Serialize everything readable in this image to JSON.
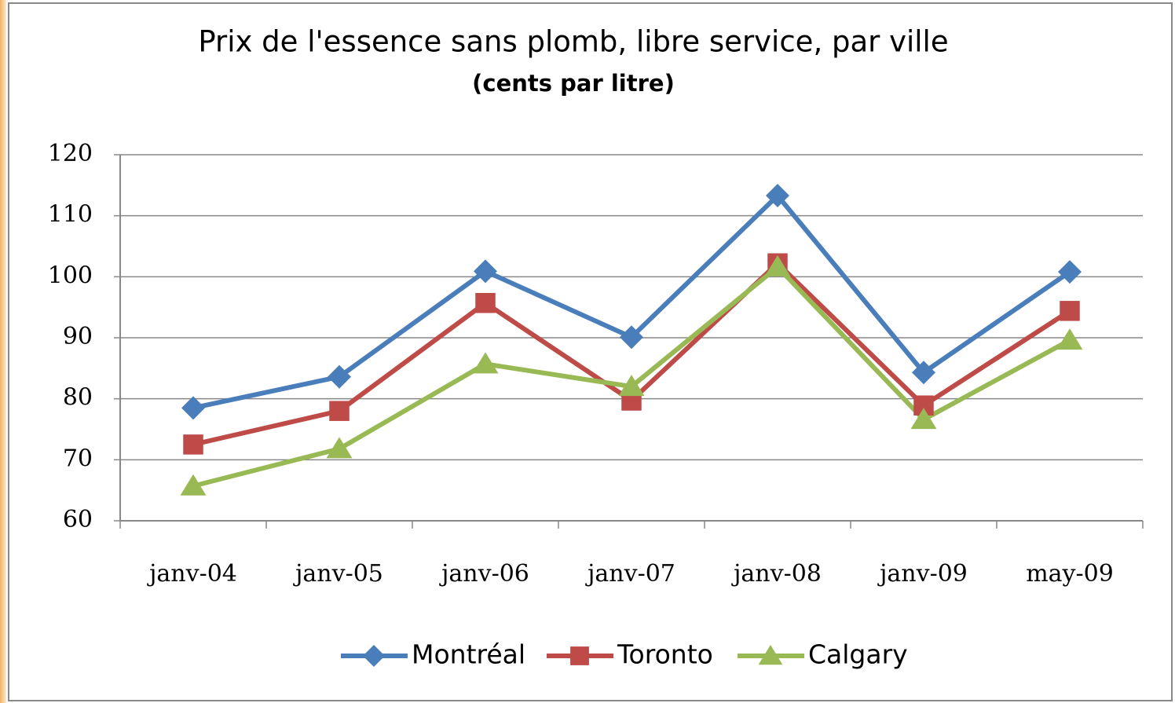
{
  "chart_data": {
    "type": "line",
    "title": "Prix de l'essence sans plomb, libre service, par ville",
    "subtitle": "(cents par litre)",
    "categories": [
      "janv-04",
      "janv-05",
      "janv-06",
      "janv-07",
      "janv-08",
      "janv-09",
      "may-09"
    ],
    "series": [
      {
        "name": "Montréal",
        "color": "#4a7ebb",
        "marker": "diamond",
        "values": [
          78.5,
          83.6,
          100.9,
          90.1,
          113.3,
          84.3,
          100.8
        ]
      },
      {
        "name": "Toronto",
        "color": "#be4b48",
        "marker": "square",
        "values": [
          72.5,
          78.0,
          95.7,
          79.7,
          102.2,
          78.9,
          94.4
        ]
      },
      {
        "name": "Calgary",
        "color": "#98b954",
        "marker": "triangle",
        "values": [
          65.7,
          71.8,
          85.7,
          82.0,
          101.6,
          76.6,
          89.6
        ]
      }
    ],
    "ylim": [
      60,
      120
    ],
    "yticks": [
      60,
      70,
      80,
      90,
      100,
      110,
      120
    ],
    "grid": true,
    "legend": "bottom"
  }
}
